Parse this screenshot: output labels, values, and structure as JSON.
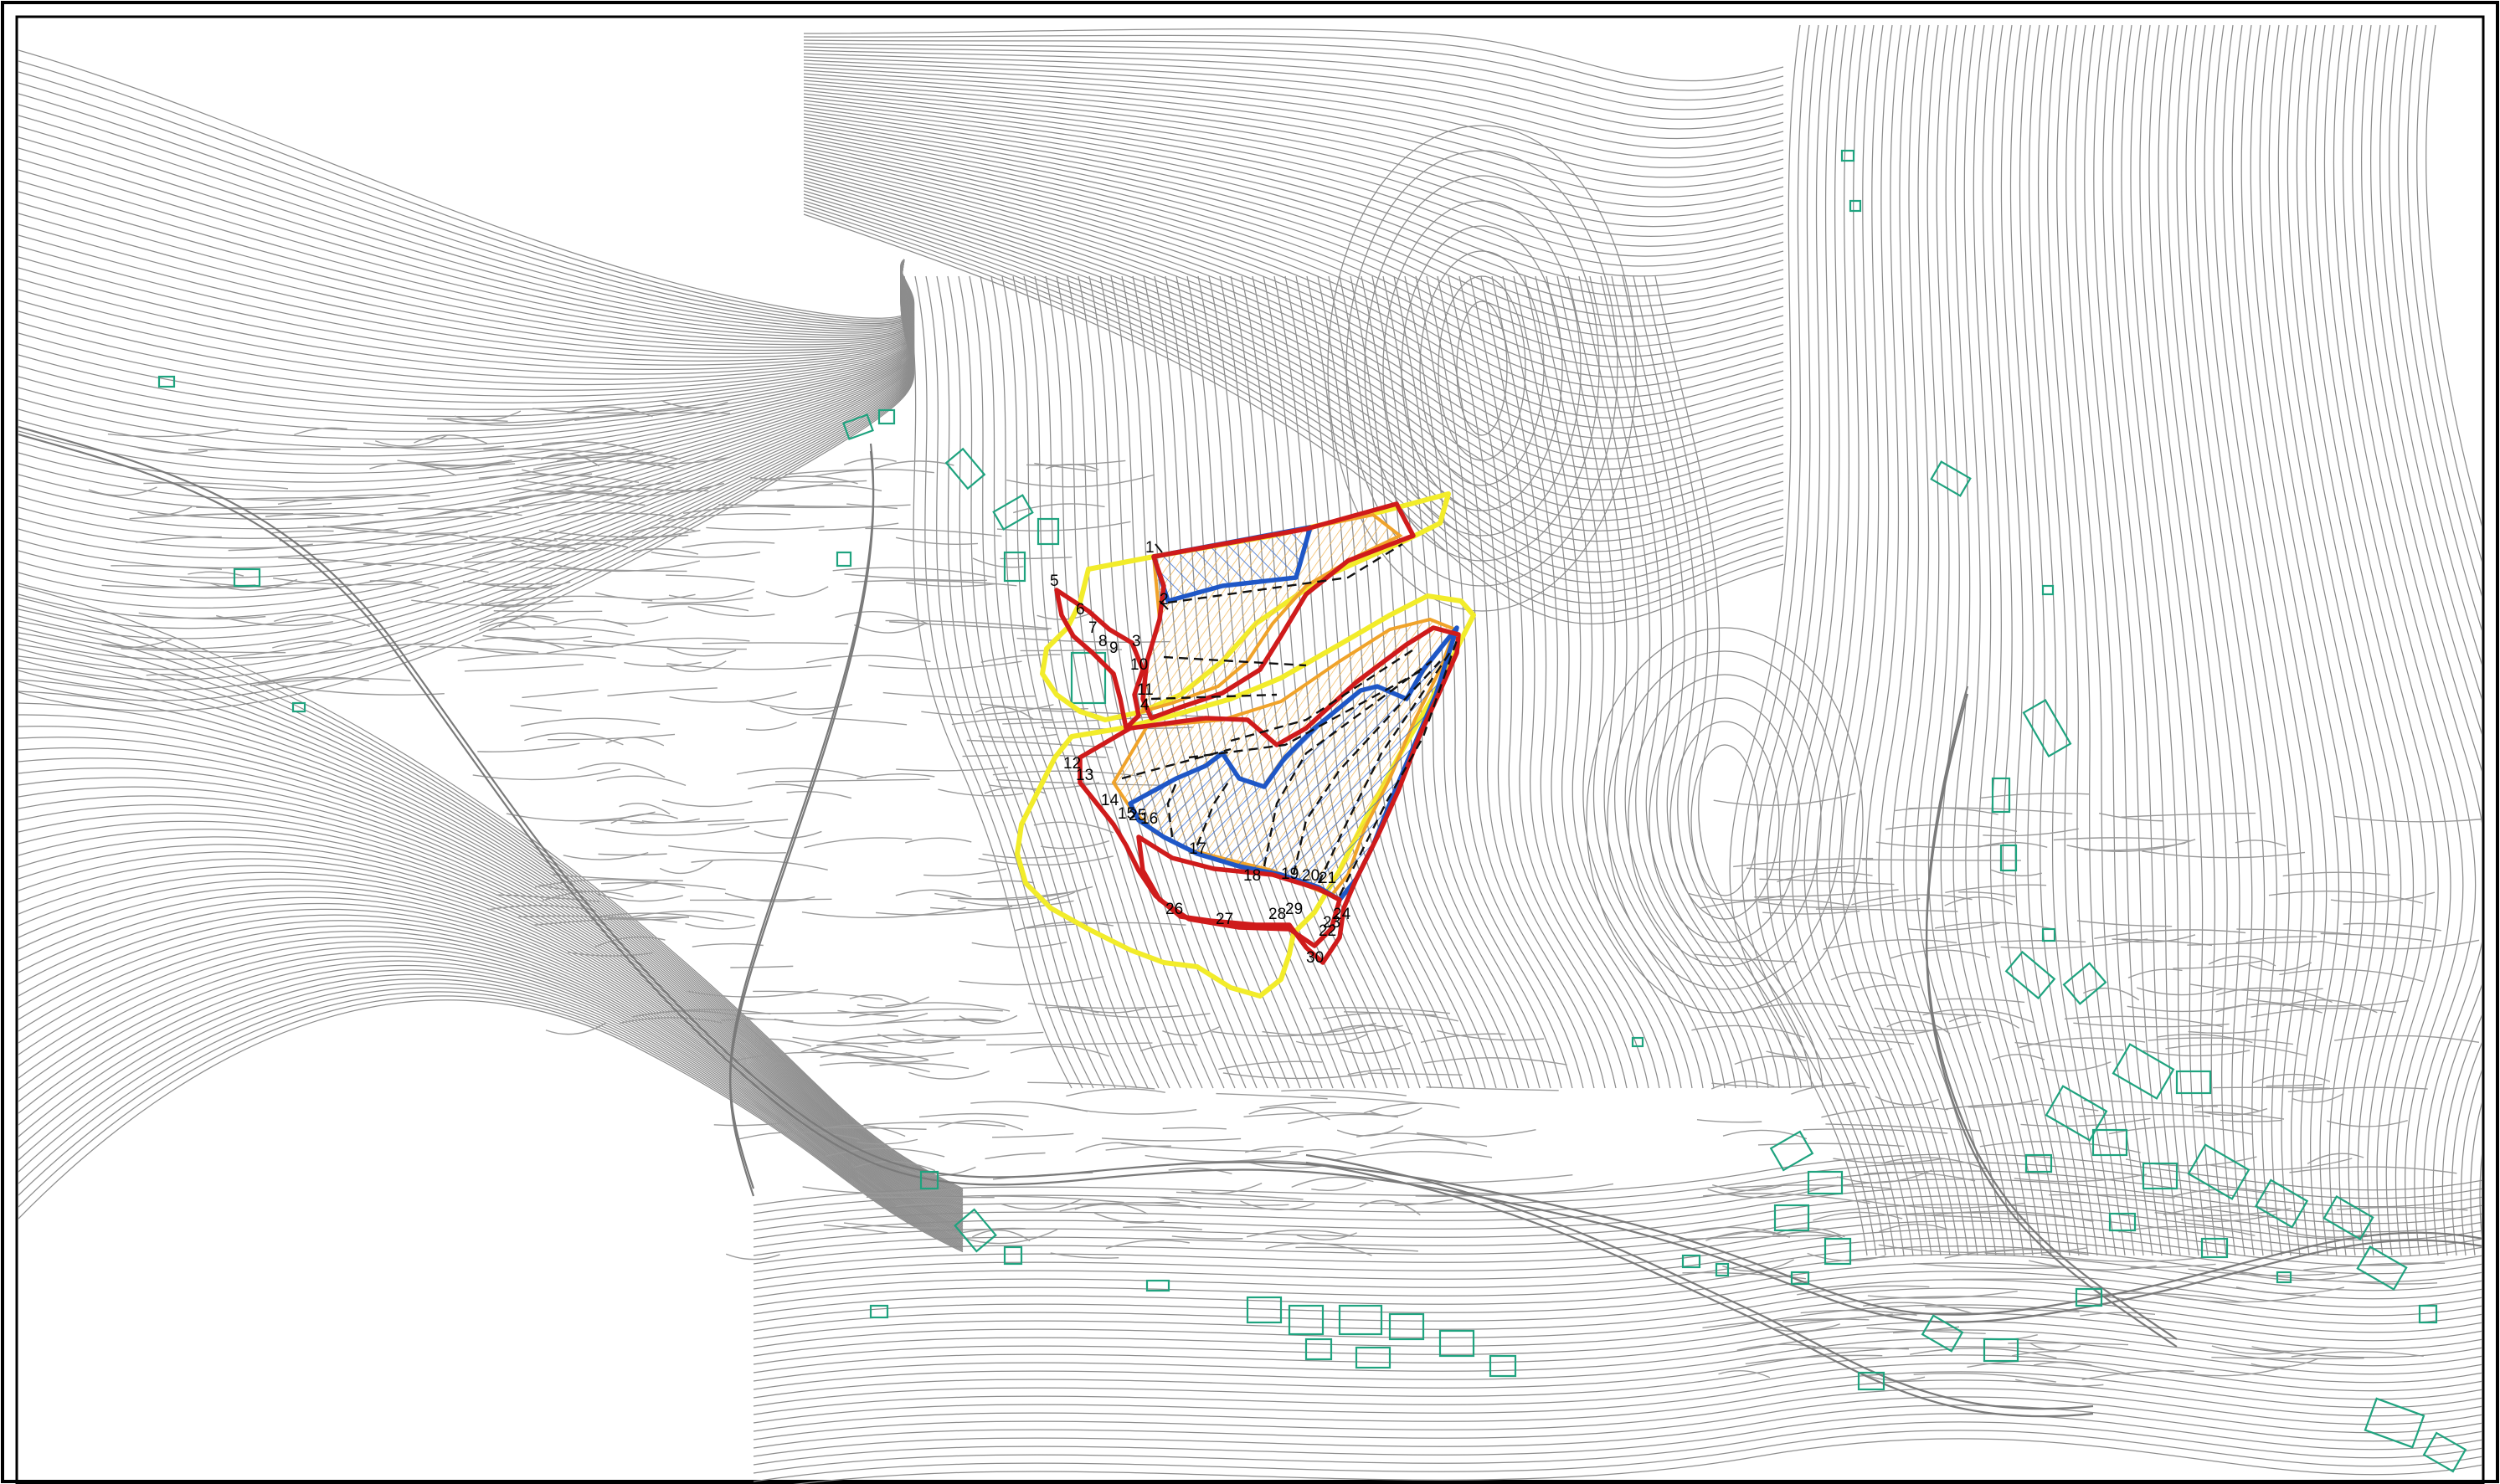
{
  "map": {
    "colors": {
      "contour": "#8d8d8d",
      "building": "#1fa37f",
      "boundary_yellow": "#f2ec2a",
      "boundary_red": "#cf1b1b",
      "zone_blue": "#1f57c6",
      "hatch_orange": "#f0a32a",
      "section_line": "#111111"
    },
    "section_labels": [
      "1",
      "2",
      "3",
      "4",
      "5",
      "6",
      "7",
      "8",
      "9",
      "10",
      "11",
      "12",
      "13",
      "14",
      "15",
      "16",
      "17",
      "18",
      "19",
      "20",
      "21",
      "22",
      "23",
      "24",
      "25",
      "26",
      "27",
      "28",
      "29",
      "30"
    ]
  }
}
